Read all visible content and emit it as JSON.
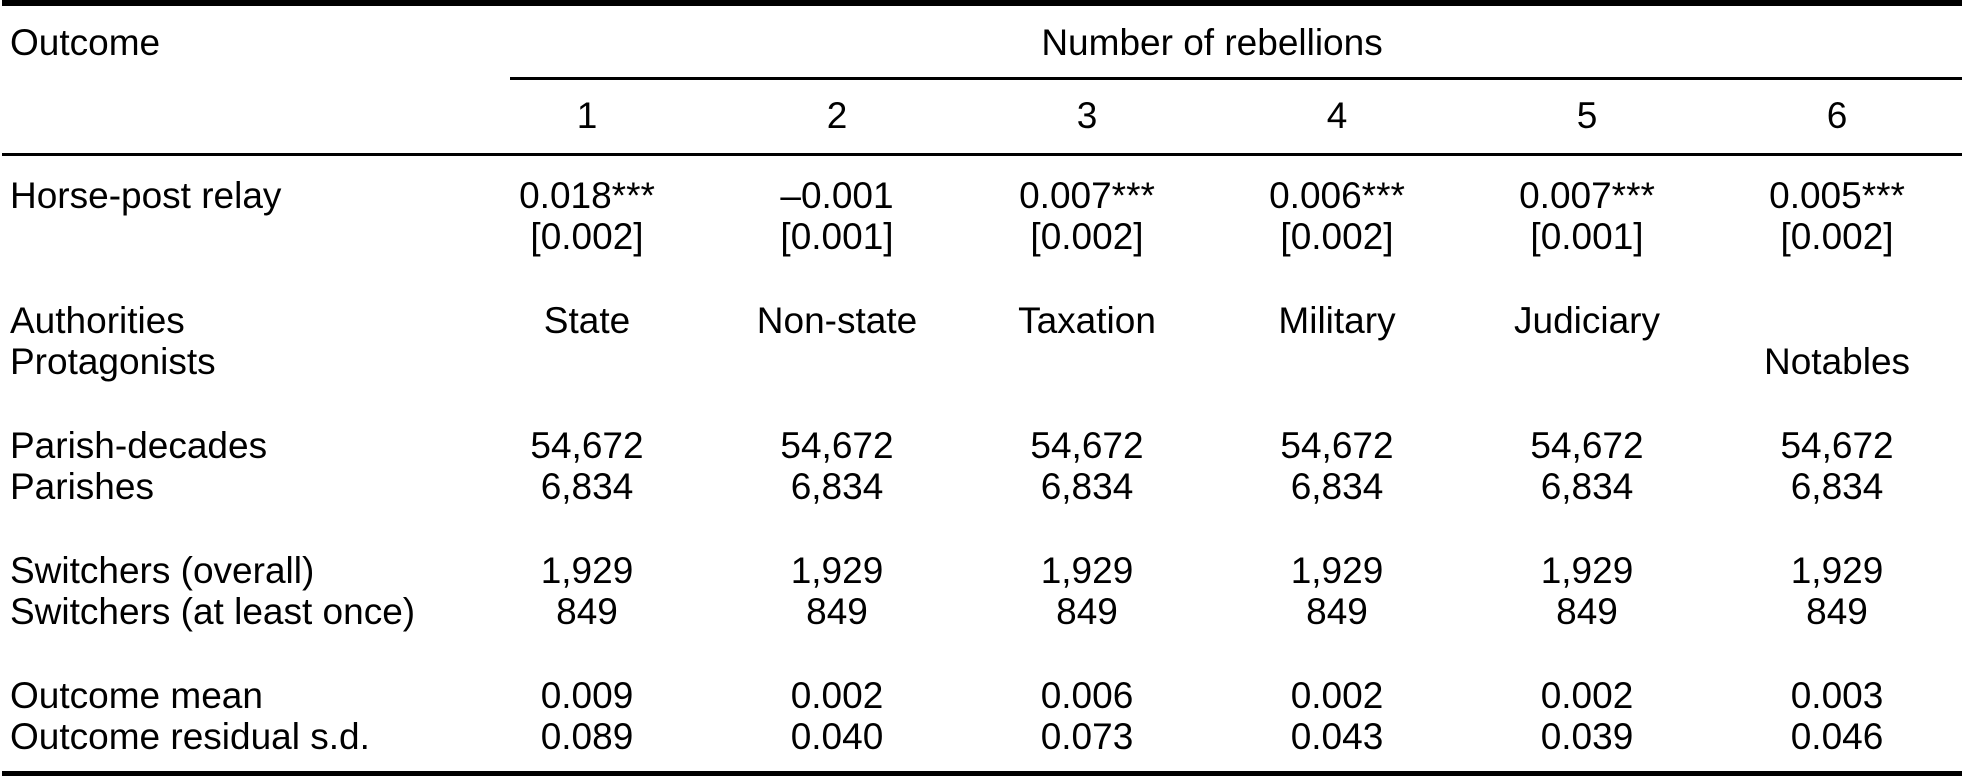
{
  "table": {
    "corner_label": "Outcome",
    "spanner_label": "Number of rebellions",
    "column_numbers": [
      "1",
      "2",
      "3",
      "4",
      "5",
      "6"
    ],
    "groups": [
      {
        "rows": [
          {
            "label": "Horse-post relay",
            "cells": [
              "0.018***",
              "–0.001",
              "0.007***",
              "0.006***",
              "0.007***",
              "0.005***"
            ]
          },
          {
            "label": "",
            "cells": [
              "[0.002]",
              "[0.001]",
              "[0.002]",
              "[0.002]",
              "[0.001]",
              "[0.002]"
            ]
          }
        ]
      },
      {
        "rows": [
          {
            "label": "Authorities",
            "cells": [
              "State",
              "Non-state",
              "Taxation",
              "Military",
              "Judiciary",
              ""
            ]
          },
          {
            "label": "Protagonists",
            "cells": [
              "",
              "",
              "",
              "",
              "",
              "Notables"
            ]
          }
        ]
      },
      {
        "rows": [
          {
            "label": "Parish-decades",
            "cells": [
              "54,672",
              "54,672",
              "54,672",
              "54,672",
              "54,672",
              "54,672"
            ]
          },
          {
            "label": "Parishes",
            "cells": [
              "6,834",
              "6,834",
              "6,834",
              "6,834",
              "6,834",
              "6,834"
            ]
          }
        ]
      },
      {
        "rows": [
          {
            "label": "Switchers (overall)",
            "cells": [
              "1,929",
              "1,929",
              "1,929",
              "1,929",
              "1,929",
              "1,929"
            ]
          },
          {
            "label": "Switchers (at least once)",
            "cells": [
              "849",
              "849",
              "849",
              "849",
              "849",
              "849"
            ]
          }
        ]
      },
      {
        "rows": [
          {
            "label": "Outcome mean",
            "cells": [
              "0.009",
              "0.002",
              "0.006",
              "0.002",
              "0.002",
              "0.003"
            ]
          },
          {
            "label": "Outcome residual s.d.",
            "cells": [
              "0.089",
              "0.040",
              "0.073",
              "0.043",
              "0.039",
              "0.046"
            ]
          }
        ]
      }
    ]
  }
}
